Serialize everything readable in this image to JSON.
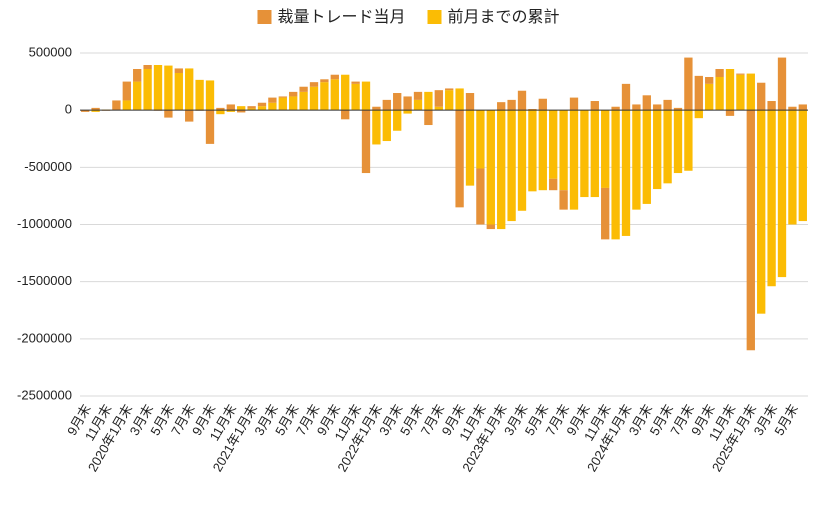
{
  "chart_data": {
    "type": "bar",
    "stacked": true,
    "categories": [
      "9月末",
      null,
      "11月末",
      null,
      "2020年1月末",
      null,
      "3月末",
      null,
      "5月末",
      null,
      "7月末",
      null,
      "9月末",
      null,
      "11月末",
      null,
      "2021年1月末",
      null,
      "3月末",
      null,
      "5月末",
      null,
      "7月末",
      null,
      "9月末",
      null,
      "11月末",
      null,
      "2022年1月末",
      null,
      "3月末",
      null,
      "5月末",
      null,
      "7月末",
      null,
      "9月末",
      null,
      "11月末",
      null,
      "2023年1月末",
      null,
      "3月末",
      null,
      "5月末",
      null,
      "7月末",
      null,
      "9月末",
      null,
      "11月末",
      null,
      "2024年1月末",
      null,
      "3月末",
      null,
      "5月末",
      null,
      "7月末",
      null,
      "9月末",
      null,
      "11月末",
      null,
      "2025年1月末",
      null,
      "3月末",
      null,
      "5月末",
      null
    ],
    "series": [
      {
        "name": "裁量トレード当月",
        "color": "#e69138",
        "values": [
          -15000,
          20000,
          -5000,
          85000,
          165000,
          110000,
          35000,
          -5000,
          -65000,
          40000,
          -100000,
          -5000,
          -295000,
          20000,
          50000,
          -20000,
          20000,
          30000,
          45000,
          10000,
          40000,
          45000,
          40000,
          25000,
          40000,
          -80000,
          20000,
          -550000,
          30000,
          90000,
          150000,
          120000,
          70000,
          -130000,
          145000,
          15000,
          -850000,
          150000,
          -490000,
          -40000,
          70000,
          90000,
          170000,
          10000,
          100000,
          -100000,
          -170000,
          110000,
          0,
          80000,
          -450000,
          30000,
          230000,
          50000,
          130000,
          50000,
          90000,
          20000,
          460000,
          300000,
          60000,
          70000,
          -50000,
          10000,
          -2100000,
          240000,
          80000,
          460000,
          30000,
          50000
        ]
      },
      {
        "name": "前月までの累計",
        "color": "#fbbc04",
        "values": [
          0,
          -15000,
          5000,
          0,
          85000,
          250000,
          360000,
          395000,
          390000,
          325000,
          365000,
          265000,
          260000,
          -35000,
          -15000,
          35000,
          15000,
          35000,
          65000,
          110000,
          120000,
          160000,
          205000,
          245000,
          270000,
          310000,
          230000,
          250000,
          -300000,
          -270000,
          -180000,
          -30000,
          90000,
          160000,
          30000,
          175000,
          190000,
          -660000,
          -510000,
          -1000000,
          -1040000,
          -970000,
          -880000,
          -710000,
          -700000,
          -600000,
          -700000,
          -870000,
          -760000,
          -760000,
          -680000,
          -1130000,
          -1100000,
          -870000,
          -820000,
          -690000,
          -640000,
          -550000,
          -530000,
          -70000,
          230000,
          290000,
          360000,
          310000,
          320000,
          -1780000,
          -1540000,
          -1460000,
          -1000000,
          -970000
        ]
      }
    ],
    "ylim": [
      -2500000,
      500000
    ],
    "yticks": [
      500000,
      0,
      -500000,
      -1000000,
      -1500000,
      -2000000,
      -2500000
    ],
    "grid": true,
    "legend": "top"
  }
}
